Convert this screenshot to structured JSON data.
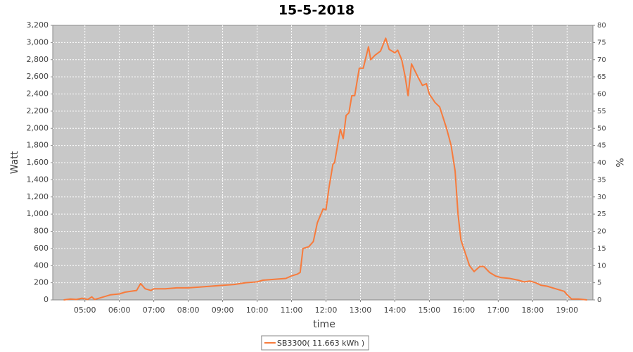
{
  "chart_data": {
    "type": "line",
    "title": "15-5-2018",
    "xlabel": "time",
    "ylabel": "Watt",
    "y2label": "%",
    "x": [
      "04:23",
      "04:35",
      "04:45",
      "04:55",
      "05:05",
      "05:12",
      "05:17",
      "05:30",
      "05:45",
      "06:00",
      "06:10",
      "06:20",
      "06:30",
      "06:37",
      "06:45",
      "06:55",
      "07:00",
      "07:20",
      "07:40",
      "08:00",
      "08:20",
      "08:40",
      "09:00",
      "09:20",
      "09:40",
      "10:00",
      "10:10",
      "10:30",
      "10:50",
      "11:00",
      "11:10",
      "11:15",
      "11:20",
      "11:30",
      "11:38",
      "11:45",
      "11:55",
      "12:00",
      "12:05",
      "12:12",
      "12:15",
      "12:25",
      "12:30",
      "12:35",
      "12:40",
      "12:45",
      "12:50",
      "12:58",
      "13:05",
      "13:14",
      "13:18",
      "13:25",
      "13:35",
      "13:44",
      "13:50",
      "14:00",
      "14:05",
      "14:12",
      "14:18",
      "14:23",
      "14:29",
      "14:40",
      "14:48",
      "14:55",
      "15:00",
      "15:10",
      "15:18",
      "15:30",
      "15:38",
      "15:45",
      "15:50",
      "15:55",
      "16:02",
      "16:10",
      "16:18",
      "16:28",
      "16:35",
      "16:45",
      "16:55",
      "17:05",
      "17:20",
      "17:35",
      "17:45",
      "17:55",
      "18:05",
      "18:15",
      "18:25",
      "18:40",
      "18:55",
      "19:00",
      "19:08",
      "19:20",
      "19:35"
    ],
    "series": [
      {
        "name": "SB3300( 11.663 kWh )",
        "color": "#f77b3c",
        "values": [
          0,
          10,
          5,
          20,
          5,
          35,
          5,
          30,
          60,
          70,
          90,
          100,
          110,
          190,
          130,
          110,
          130,
          130,
          140,
          140,
          150,
          160,
          170,
          180,
          200,
          210,
          230,
          240,
          250,
          280,
          300,
          320,
          600,
          620,
          680,
          900,
          1060,
          1050,
          1300,
          1580,
          1600,
          1990,
          1880,
          2150,
          2180,
          2380,
          2380,
          2700,
          2700,
          2950,
          2800,
          2850,
          2900,
          3050,
          2920,
          2880,
          2910,
          2800,
          2600,
          2380,
          2750,
          2600,
          2500,
          2520,
          2400,
          2300,
          2250,
          2000,
          1800,
          1500,
          1000,
          700,
          560,
          400,
          330,
          390,
          390,
          320,
          280,
          260,
          250,
          230,
          210,
          220,
          200,
          170,
          160,
          130,
          100,
          60,
          10,
          10,
          0
        ]
      }
    ],
    "xlim": [
      "04:04",
      "19:45"
    ],
    "xticks": [
      "05:00",
      "06:00",
      "07:00",
      "08:00",
      "09:00",
      "10:00",
      "11:00",
      "12:00",
      "13:00",
      "14:00",
      "15:00",
      "16:00",
      "17:00",
      "18:00",
      "19:00"
    ],
    "ylim": [
      0,
      3200
    ],
    "yticks": [
      0,
      200,
      400,
      600,
      800,
      {
        "value": 1000,
        "label": "1,000"
      },
      {
        "value": 1200,
        "label": "1,200"
      },
      {
        "value": 1400,
        "label": "1,400"
      },
      {
        "value": 1600,
        "label": "1,600"
      },
      {
        "value": 1800,
        "label": "1,800"
      },
      {
        "value": 2000,
        "label": "2,000"
      },
      {
        "value": 2200,
        "label": "2,200"
      },
      {
        "value": 2400,
        "label": "2,400"
      },
      {
        "value": 2600,
        "label": "2,600"
      },
      {
        "value": 2800,
        "label": "2,800"
      },
      {
        "value": 3000,
        "label": "3,000"
      },
      {
        "value": 3200,
        "label": "3,200"
      }
    ],
    "y2lim": [
      0,
      80
    ],
    "y2ticks": [
      0,
      5,
      10,
      15,
      20,
      25,
      30,
      35,
      40,
      45,
      50,
      55,
      60,
      65,
      70,
      75,
      80
    ],
    "grid": true,
    "plot_background": "#c8c8c8",
    "legend": "bottom"
  }
}
